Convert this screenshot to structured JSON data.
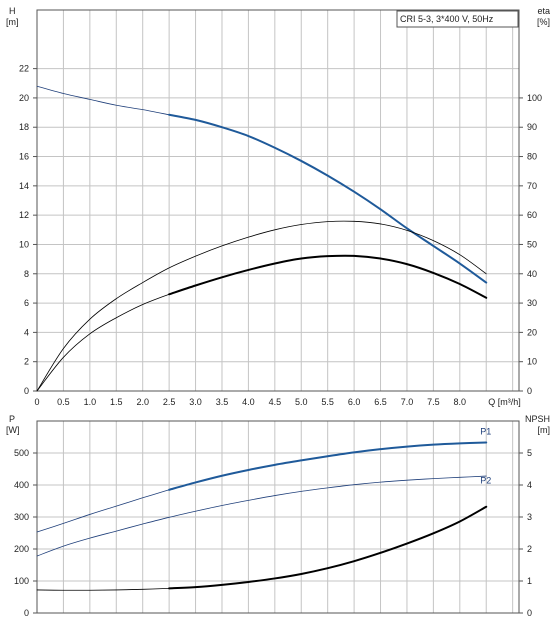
{
  "chart_data": [
    {
      "type": "line",
      "panel": "top",
      "legend_box": "CRI 5-3, 3*400 V, 50Hz",
      "y_left_label": [
        "H",
        "[m]"
      ],
      "y_right_label": [
        "eta",
        "[%]"
      ],
      "x_unit_label": "Q [m³/h]",
      "x_ticks": [
        "0",
        "0.5",
        "1.0",
        "1.5",
        "2.0",
        "2.5",
        "3.0",
        "3.5",
        "4.0",
        "4.5",
        "5.0",
        "5.5",
        "6.0",
        "6.5",
        "7.0",
        "7.5",
        "8.0"
      ],
      "x_tick_values": [
        0,
        0.5,
        1.0,
        1.5,
        2.0,
        2.5,
        3.0,
        3.5,
        4.0,
        4.5,
        5.0,
        5.5,
        6.0,
        6.5,
        7.0,
        7.5,
        8.0
      ],
      "xlim": [
        0,
        9.12
      ],
      "y_left_ticks": [
        "0",
        "2",
        "4",
        "6",
        "8",
        "10",
        "12",
        "14",
        "16",
        "18",
        "20",
        "22"
      ],
      "y_left_tick_values": [
        0,
        2,
        4,
        6,
        8,
        10,
        12,
        14,
        16,
        18,
        20,
        22
      ],
      "ylim_left": [
        0,
        26
      ],
      "y_right_ticks": [
        "0",
        "10",
        "20",
        "30",
        "40",
        "50",
        "60",
        "70",
        "80",
        "90",
        "100"
      ],
      "y_right_tick_values": [
        0,
        10,
        20,
        30,
        40,
        50,
        60,
        70,
        80,
        90,
        100
      ],
      "ylim_right": [
        0,
        130
      ],
      "grid": true,
      "series": [
        {
          "axis": "left",
          "color": "#1f3f7a",
          "width": 0.8,
          "x": [
            0,
            0.5,
            1.0,
            1.5,
            2.0,
            2.5
          ],
          "y": [
            20.8,
            20.3,
            19.9,
            19.5,
            19.2,
            18.85
          ]
        },
        {
          "axis": "left",
          "color": "#1f5a9a",
          "width": 2,
          "x": [
            2.5,
            3.0,
            3.5,
            4.0,
            4.5,
            5.0,
            5.5,
            6.0,
            6.5,
            7.0,
            7.5,
            8.0,
            8.5
          ],
          "y": [
            18.85,
            18.5,
            18.0,
            17.4,
            16.6,
            15.7,
            14.7,
            13.6,
            12.4,
            11.1,
            9.9,
            8.7,
            7.4
          ]
        },
        {
          "axis": "right",
          "color": "#000000",
          "width": 0.8,
          "x": [
            0,
            0.5,
            1.0,
            1.5,
            2.0,
            2.5,
            3.0,
            3.5,
            4.0,
            4.5,
            5.0,
            5.5,
            6.0,
            6.5,
            7.0,
            7.5,
            8.0,
            8.5
          ],
          "y": [
            0,
            14.5,
            24.5,
            31.5,
            37.0,
            42.0,
            46.0,
            49.5,
            52.5,
            55.0,
            56.8,
            57.8,
            57.9,
            57.0,
            54.8,
            51.3,
            46.5,
            40.0
          ]
        },
        {
          "axis": "right",
          "color": "#000000",
          "width": 0.8,
          "x": [
            0,
            0.5,
            1.0,
            1.5,
            2.0,
            2.5
          ],
          "y": [
            0,
            11.5,
            19.5,
            25.0,
            29.5,
            33.0
          ]
        },
        {
          "axis": "right",
          "color": "#000000",
          "width": 2,
          "x": [
            2.5,
            3.0,
            3.5,
            4.0,
            4.5,
            5.0,
            5.5,
            6.0,
            6.5,
            7.0,
            7.5,
            8.0,
            8.5
          ],
          "y": [
            33.0,
            36.0,
            38.8,
            41.3,
            43.5,
            45.2,
            46.0,
            46.1,
            45.2,
            43.3,
            40.3,
            36.5,
            31.8
          ]
        }
      ]
    },
    {
      "type": "line",
      "panel": "bottom",
      "y_left_label": [
        "P",
        "[W]"
      ],
      "y_right_label": [
        "NPSH",
        "[m]"
      ],
      "xlim": [
        0,
        9.12
      ],
      "y_left_ticks": [
        "0",
        "100",
        "200",
        "300",
        "400",
        "500"
      ],
      "y_left_tick_values": [
        0,
        100,
        200,
        300,
        400,
        500
      ],
      "ylim_left": [
        0,
        600
      ],
      "y_right_ticks": [
        "0",
        "1",
        "2",
        "3",
        "4",
        "5"
      ],
      "y_right_tick_values": [
        0,
        1,
        2,
        3,
        4,
        5
      ],
      "ylim_right": [
        0,
        6
      ],
      "grid": true,
      "series_labels": [
        {
          "text": "P1",
          "x": 8.5,
          "y": 548
        },
        {
          "text": "P2",
          "x": 8.5,
          "y": 396
        }
      ],
      "series": [
        {
          "name": "P1",
          "axis": "left",
          "color": "#1f3f7a",
          "width": 0.8,
          "x": [
            0,
            0.5,
            1.0,
            1.5,
            2.0,
            2.5
          ],
          "y": [
            253,
            280,
            308,
            334,
            360,
            385
          ]
        },
        {
          "name": "P1",
          "axis": "left",
          "color": "#1f5a9a",
          "width": 2,
          "x": [
            2.5,
            3.0,
            3.5,
            4.0,
            4.5,
            5.0,
            5.5,
            6.0,
            6.5,
            7.0,
            7.5,
            8.0,
            8.5
          ],
          "y": [
            385,
            408,
            429,
            447,
            463,
            477,
            490,
            502,
            512,
            520,
            526,
            530,
            533
          ]
        },
        {
          "name": "P2",
          "axis": "left",
          "color": "#1f3f7a",
          "width": 0.8,
          "x": [
            0,
            0.5,
            1.0,
            1.5,
            2.0,
            2.5,
            3.0,
            3.5,
            4.0,
            4.5,
            5.0,
            5.5,
            6.0,
            6.5,
            7.0,
            7.5,
            8.0,
            8.5
          ],
          "y": [
            178,
            209,
            234,
            256,
            278,
            299,
            318,
            336,
            352,
            367,
            380,
            391,
            401,
            409,
            415,
            420,
            424,
            428
          ]
        },
        {
          "axis": "right",
          "color": "#000000",
          "width": 0.8,
          "x": [
            0,
            0.5,
            1.0,
            1.5,
            2.0,
            2.5
          ],
          "y": [
            0.72,
            0.71,
            0.71,
            0.72,
            0.74,
            0.77
          ]
        },
        {
          "axis": "right",
          "color": "#000000",
          "width": 2,
          "x": [
            2.5,
            3.0,
            3.5,
            4.0,
            4.5,
            5.0,
            5.5,
            6.0,
            6.5,
            7.0,
            7.5,
            8.0,
            8.5
          ],
          "y": [
            0.77,
            0.81,
            0.88,
            0.97,
            1.08,
            1.22,
            1.4,
            1.62,
            1.88,
            2.17,
            2.49,
            2.86,
            3.32
          ]
        }
      ]
    }
  ]
}
